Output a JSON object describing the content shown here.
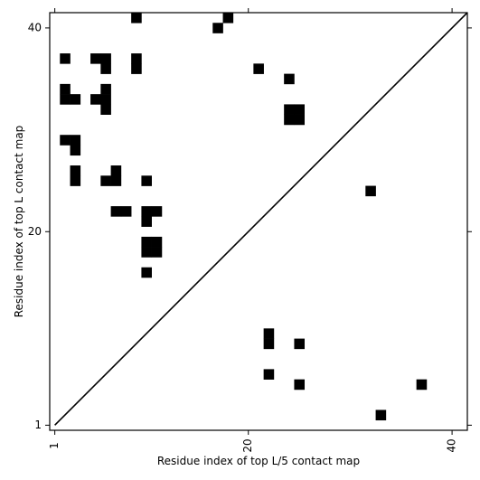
{
  "chart_data": {
    "type": "heatmap",
    "title": "",
    "xlabel": "Residue index of top L/5 contact map",
    "ylabel": "Residue index of top L contact map",
    "xlim": [
      0.5,
      41.5
    ],
    "ylim": [
      0.5,
      41.5
    ],
    "x_ticks": [
      {
        "value": 1,
        "label": "1"
      },
      {
        "value": 20,
        "label": "20"
      },
      {
        "value": 40,
        "label": "40"
      }
    ],
    "y_ticks": [
      {
        "value": 1,
        "label": "1"
      },
      {
        "value": 20,
        "label": "20"
      },
      {
        "value": 40,
        "label": "40"
      }
    ],
    "diagonal": true,
    "grid": false,
    "cell_color": "#000000",
    "background_color": "#ffffff",
    "cells_upper_triangle": [
      [
        9,
        41
      ],
      [
        18,
        41
      ],
      [
        17,
        40
      ],
      [
        2,
        37
      ],
      [
        5,
        37
      ],
      [
        6,
        37
      ],
      [
        9,
        37
      ],
      [
        6,
        36
      ],
      [
        9,
        36
      ],
      [
        21,
        36
      ],
      [
        24,
        35
      ],
      [
        2,
        34
      ],
      [
        6,
        34
      ],
      [
        2,
        33
      ],
      [
        3,
        33
      ],
      [
        5,
        33
      ],
      [
        6,
        33
      ],
      [
        6,
        32
      ],
      [
        24,
        32
      ],
      [
        25,
        32
      ],
      [
        24,
        31
      ],
      [
        25,
        31
      ],
      [
        2,
        29
      ],
      [
        3,
        29
      ],
      [
        3,
        28
      ],
      [
        3,
        26
      ],
      [
        7,
        26
      ],
      [
        3,
        25
      ],
      [
        6,
        25
      ],
      [
        7,
        25
      ],
      [
        10,
        25
      ],
      [
        32,
        24
      ],
      [
        7,
        22
      ],
      [
        8,
        22
      ],
      [
        10,
        22
      ],
      [
        11,
        22
      ],
      [
        10,
        21
      ],
      [
        10,
        19
      ],
      [
        11,
        19
      ],
      [
        10,
        18
      ],
      [
        11,
        18
      ],
      [
        10,
        16
      ]
    ],
    "cells_lower_triangle": [
      [
        22,
        10
      ],
      [
        22,
        9
      ],
      [
        25,
        9
      ],
      [
        22,
        6
      ],
      [
        25,
        5
      ],
      [
        37,
        5
      ],
      [
        33,
        2
      ]
    ]
  }
}
